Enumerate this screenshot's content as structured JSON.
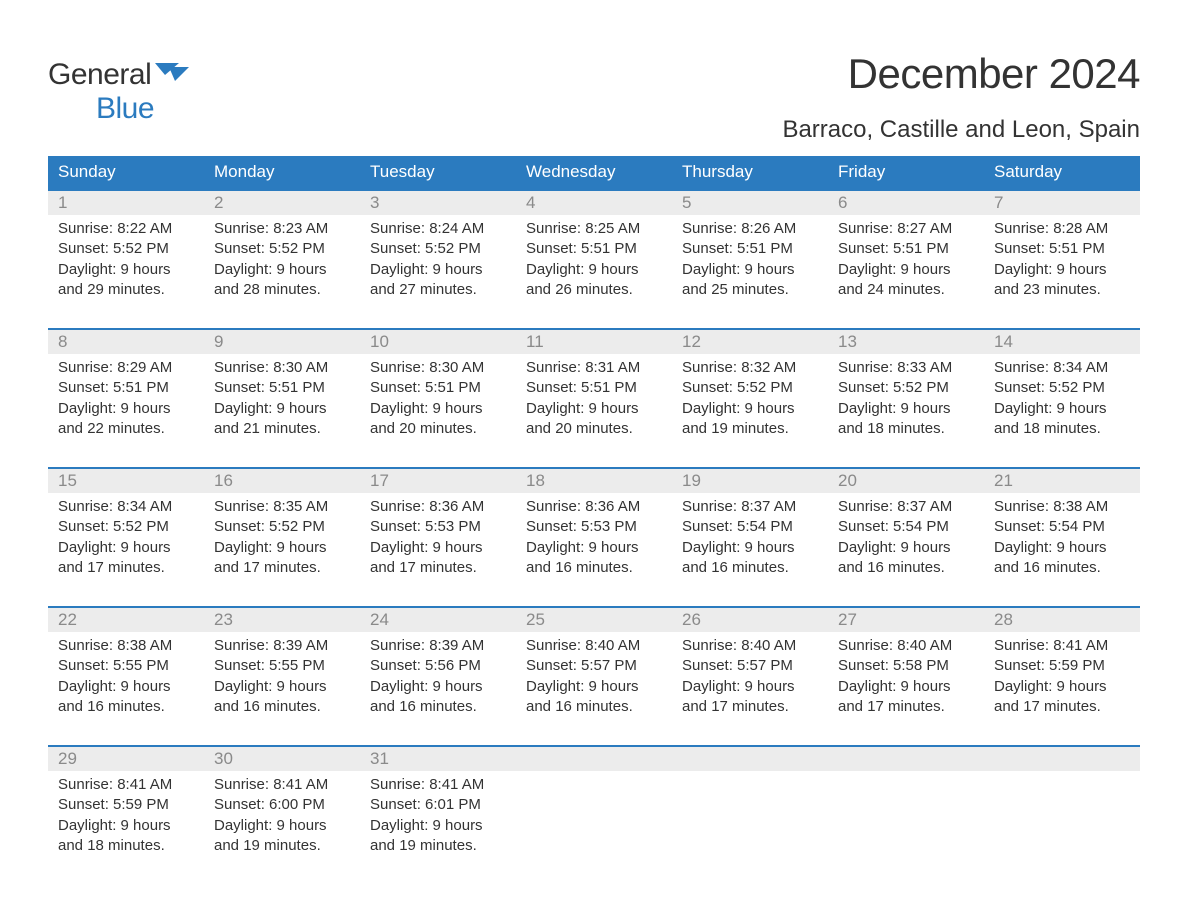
{
  "logo": {
    "line1": "General",
    "line2": "Blue",
    "flag_color": "#2b7bbf"
  },
  "title": "December 2024",
  "location": "Barraco, Castille and Leon, Spain",
  "colors": {
    "header_bg": "#2b7bbf",
    "header_text": "#ffffff",
    "daynum_bg": "#ececec",
    "daynum_text": "#8a8a8a",
    "body_text": "#333333",
    "week_border": "#2b7bbf",
    "page_bg": "#ffffff"
  },
  "typography": {
    "title_fontsize": 42,
    "location_fontsize": 24,
    "header_fontsize": 17,
    "daynum_fontsize": 17,
    "body_fontsize": 15,
    "font_family": "Arial"
  },
  "day_headers": [
    "Sunday",
    "Monday",
    "Tuesday",
    "Wednesday",
    "Thursday",
    "Friday",
    "Saturday"
  ],
  "labels": {
    "sunrise": "Sunrise:",
    "sunset": "Sunset:",
    "daylight": "Daylight:"
  },
  "weeks": [
    [
      {
        "num": "1",
        "sunrise": "8:22 AM",
        "sunset": "5:52 PM",
        "daylight_l1": "9 hours",
        "daylight_l2": "and 29 minutes."
      },
      {
        "num": "2",
        "sunrise": "8:23 AM",
        "sunset": "5:52 PM",
        "daylight_l1": "9 hours",
        "daylight_l2": "and 28 minutes."
      },
      {
        "num": "3",
        "sunrise": "8:24 AM",
        "sunset": "5:52 PM",
        "daylight_l1": "9 hours",
        "daylight_l2": "and 27 minutes."
      },
      {
        "num": "4",
        "sunrise": "8:25 AM",
        "sunset": "5:51 PM",
        "daylight_l1": "9 hours",
        "daylight_l2": "and 26 minutes."
      },
      {
        "num": "5",
        "sunrise": "8:26 AM",
        "sunset": "5:51 PM",
        "daylight_l1": "9 hours",
        "daylight_l2": "and 25 minutes."
      },
      {
        "num": "6",
        "sunrise": "8:27 AM",
        "sunset": "5:51 PM",
        "daylight_l1": "9 hours",
        "daylight_l2": "and 24 minutes."
      },
      {
        "num": "7",
        "sunrise": "8:28 AM",
        "sunset": "5:51 PM",
        "daylight_l1": "9 hours",
        "daylight_l2": "and 23 minutes."
      }
    ],
    [
      {
        "num": "8",
        "sunrise": "8:29 AM",
        "sunset": "5:51 PM",
        "daylight_l1": "9 hours",
        "daylight_l2": "and 22 minutes."
      },
      {
        "num": "9",
        "sunrise": "8:30 AM",
        "sunset": "5:51 PM",
        "daylight_l1": "9 hours",
        "daylight_l2": "and 21 minutes."
      },
      {
        "num": "10",
        "sunrise": "8:30 AM",
        "sunset": "5:51 PM",
        "daylight_l1": "9 hours",
        "daylight_l2": "and 20 minutes."
      },
      {
        "num": "11",
        "sunrise": "8:31 AM",
        "sunset": "5:51 PM",
        "daylight_l1": "9 hours",
        "daylight_l2": "and 20 minutes."
      },
      {
        "num": "12",
        "sunrise": "8:32 AM",
        "sunset": "5:52 PM",
        "daylight_l1": "9 hours",
        "daylight_l2": "and 19 minutes."
      },
      {
        "num": "13",
        "sunrise": "8:33 AM",
        "sunset": "5:52 PM",
        "daylight_l1": "9 hours",
        "daylight_l2": "and 18 minutes."
      },
      {
        "num": "14",
        "sunrise": "8:34 AM",
        "sunset": "5:52 PM",
        "daylight_l1": "9 hours",
        "daylight_l2": "and 18 minutes."
      }
    ],
    [
      {
        "num": "15",
        "sunrise": "8:34 AM",
        "sunset": "5:52 PM",
        "daylight_l1": "9 hours",
        "daylight_l2": "and 17 minutes."
      },
      {
        "num": "16",
        "sunrise": "8:35 AM",
        "sunset": "5:52 PM",
        "daylight_l1": "9 hours",
        "daylight_l2": "and 17 minutes."
      },
      {
        "num": "17",
        "sunrise": "8:36 AM",
        "sunset": "5:53 PM",
        "daylight_l1": "9 hours",
        "daylight_l2": "and 17 minutes."
      },
      {
        "num": "18",
        "sunrise": "8:36 AM",
        "sunset": "5:53 PM",
        "daylight_l1": "9 hours",
        "daylight_l2": "and 16 minutes."
      },
      {
        "num": "19",
        "sunrise": "8:37 AM",
        "sunset": "5:54 PM",
        "daylight_l1": "9 hours",
        "daylight_l2": "and 16 minutes."
      },
      {
        "num": "20",
        "sunrise": "8:37 AM",
        "sunset": "5:54 PM",
        "daylight_l1": "9 hours",
        "daylight_l2": "and 16 minutes."
      },
      {
        "num": "21",
        "sunrise": "8:38 AM",
        "sunset": "5:54 PM",
        "daylight_l1": "9 hours",
        "daylight_l2": "and 16 minutes."
      }
    ],
    [
      {
        "num": "22",
        "sunrise": "8:38 AM",
        "sunset": "5:55 PM",
        "daylight_l1": "9 hours",
        "daylight_l2": "and 16 minutes."
      },
      {
        "num": "23",
        "sunrise": "8:39 AM",
        "sunset": "5:55 PM",
        "daylight_l1": "9 hours",
        "daylight_l2": "and 16 minutes."
      },
      {
        "num": "24",
        "sunrise": "8:39 AM",
        "sunset": "5:56 PM",
        "daylight_l1": "9 hours",
        "daylight_l2": "and 16 minutes."
      },
      {
        "num": "25",
        "sunrise": "8:40 AM",
        "sunset": "5:57 PM",
        "daylight_l1": "9 hours",
        "daylight_l2": "and 16 minutes."
      },
      {
        "num": "26",
        "sunrise": "8:40 AM",
        "sunset": "5:57 PM",
        "daylight_l1": "9 hours",
        "daylight_l2": "and 17 minutes."
      },
      {
        "num": "27",
        "sunrise": "8:40 AM",
        "sunset": "5:58 PM",
        "daylight_l1": "9 hours",
        "daylight_l2": "and 17 minutes."
      },
      {
        "num": "28",
        "sunrise": "8:41 AM",
        "sunset": "5:59 PM",
        "daylight_l1": "9 hours",
        "daylight_l2": "and 17 minutes."
      }
    ],
    [
      {
        "num": "29",
        "sunrise": "8:41 AM",
        "sunset": "5:59 PM",
        "daylight_l1": "9 hours",
        "daylight_l2": "and 18 minutes."
      },
      {
        "num": "30",
        "sunrise": "8:41 AM",
        "sunset": "6:00 PM",
        "daylight_l1": "9 hours",
        "daylight_l2": "and 19 minutes."
      },
      {
        "num": "31",
        "sunrise": "8:41 AM",
        "sunset": "6:01 PM",
        "daylight_l1": "9 hours",
        "daylight_l2": "and 19 minutes."
      },
      null,
      null,
      null,
      null
    ]
  ]
}
